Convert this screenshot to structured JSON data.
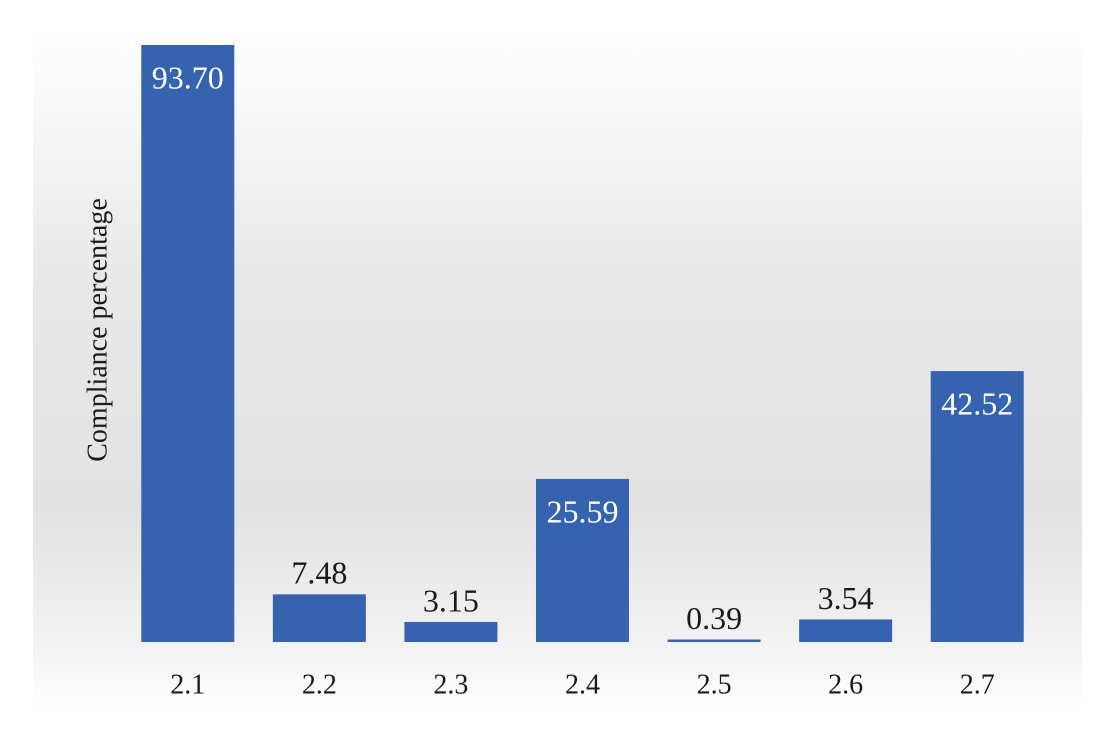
{
  "chart_data": {
    "type": "bar",
    "y_label": "Compliance percentage",
    "categories": [
      "2.1",
      "2.2",
      "2.3",
      "2.4",
      "2.5",
      "2.6",
      "2.7"
    ],
    "values": [
      93.7,
      7.48,
      3.15,
      25.59,
      0.39,
      3.54,
      42.52
    ],
    "value_labels": [
      "93.70",
      "7.48",
      "3.15",
      "25.59",
      "0.39",
      "3.54",
      "42.52"
    ],
    "color": "#3563b0",
    "grid": false
  }
}
